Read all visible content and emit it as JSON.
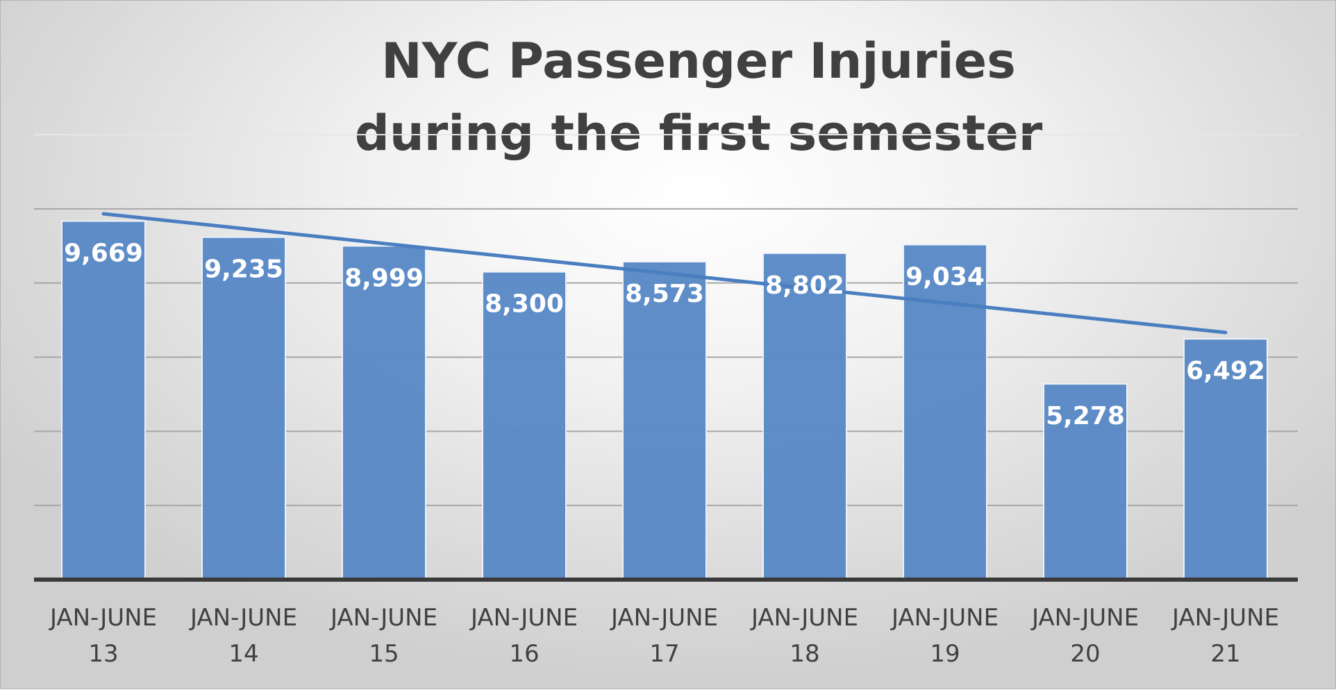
{
  "chart_data": {
    "type": "bar",
    "title_line1": "NYC Passenger Injuries",
    "title_line2": "during the first semester",
    "categories": [
      [
        "JAN-JUNE",
        "13"
      ],
      [
        "JAN-JUNE",
        "14"
      ],
      [
        "JAN-JUNE",
        "15"
      ],
      [
        "JAN-JUNE",
        "16"
      ],
      [
        "JAN-JUNE",
        "17"
      ],
      [
        "JAN-JUNE",
        "18"
      ],
      [
        "JAN-JUNE",
        "19"
      ],
      [
        "JAN-JUNE",
        "20"
      ],
      [
        "JAN-JUNE",
        "21"
      ]
    ],
    "values": [
      9669,
      9235,
      8999,
      8300,
      8573,
      8802,
      9034,
      5278,
      6492
    ],
    "data_labels": [
      "9,669",
      "9,235",
      "8,999",
      "8,300",
      "8,573",
      "8,802",
      "9,034",
      "5,278",
      "6,492"
    ],
    "ylim": [
      0,
      12000
    ],
    "y_gridlines": [
      2000,
      4000,
      6000,
      8000,
      10000,
      12000
    ],
    "y_tick_labels_shown": false,
    "trendline": {
      "type": "linear",
      "shown": true
    },
    "legend": "none",
    "colors": {
      "bar": "#5a8ac6",
      "trendline": "#4a7ec0",
      "axis": "#3a3a3a",
      "gridline": "#a6a6a6",
      "title": "#404040"
    }
  }
}
